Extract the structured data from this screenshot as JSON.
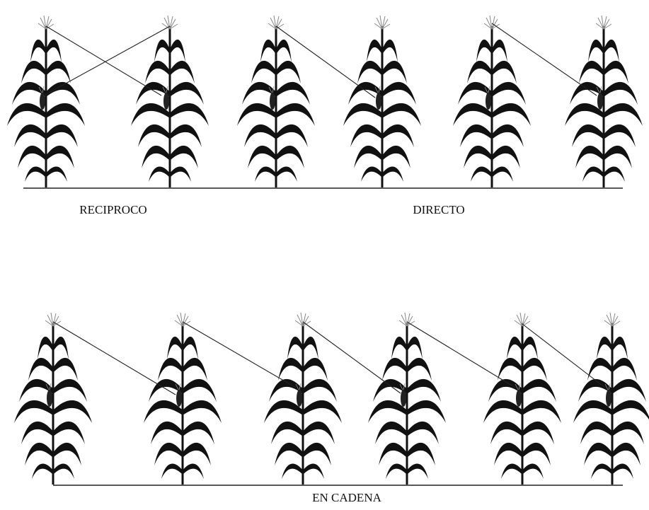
{
  "labels": {
    "reciproco": "RECIPROCO",
    "directo": "DIRECTO",
    "en_cadena": "EN CADENA"
  }
}
